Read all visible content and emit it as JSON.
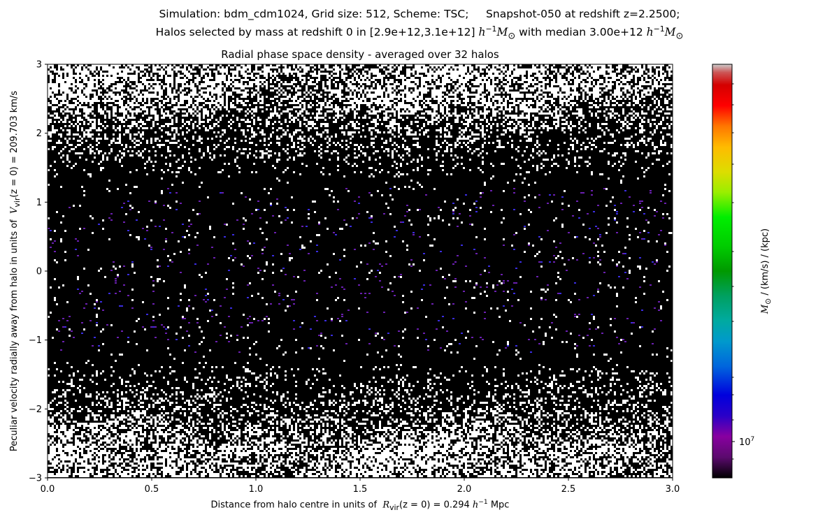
{
  "header": {
    "line1": "Simulation: bdm_cdm1024, Grid size: 512, Scheme: TSC;     Snapshot-050 at redshift z=2.2500;",
    "line2_prefix": "Halos selected by mass at redshift 0 in [2.9e+12,3.1e+12] ",
    "line2_unit_h": "h",
    "line2_unit_exp": "−1",
    "line2_unit_m": "M",
    "line2_unit_sub": "⊙",
    "line2_middle": " with median 3.00e+12 ",
    "line2_unit2_h": "h",
    "line2_unit2_exp": "−1",
    "line2_unit2_m": "M",
    "line2_unit2_sub": "⊙"
  },
  "chart_data": {
    "type": "heatmap",
    "title": "Radial phase space density - averaged over 32 halos",
    "xlabel_prefix": "Distance from halo centre in units of  ",
    "xlabel_sym": "R",
    "xlabel_sub": "vir",
    "xlabel_mid": "(z = 0) = 0.294 ",
    "xlabel_h": "h",
    "xlabel_exp": "−1",
    "xlabel_suffix": " Mpc",
    "ylabel_prefix": "Peculiar velocity radially away from halo in units of  ",
    "ylabel_sym": "V",
    "ylabel_sub": "vir",
    "ylabel_suffix": "(z = 0) = 209.703 km/s",
    "xlim": [
      0.0,
      3.0
    ],
    "ylim": [
      -3,
      3
    ],
    "x_ticks": [
      "0.0",
      "0.5",
      "1.0",
      "1.5",
      "2.0",
      "2.5",
      "3.0"
    ],
    "x_tick_values": [
      0.0,
      0.5,
      1.0,
      1.5,
      2.0,
      2.5,
      3.0
    ],
    "y_ticks": [
      "−3",
      "−2",
      "−1",
      "0",
      "1",
      "2",
      "3"
    ],
    "y_tick_values": [
      -3,
      -2,
      -1,
      0,
      1,
      2,
      3
    ],
    "colorbar": {
      "label_m": "M",
      "label_sub": "⊙",
      "label_rest": " / (km/s) / (kpc)",
      "tick_label_base": "10",
      "tick_label_exp": "7",
      "scale": "log",
      "colormap": "nipy_spectral"
    },
    "colors": {
      "background": "#000000",
      "empty_bins": "#ffffff",
      "speckle_purple": "#6a1fb0",
      "speckle_blue": "#3a2ce0"
    }
  }
}
